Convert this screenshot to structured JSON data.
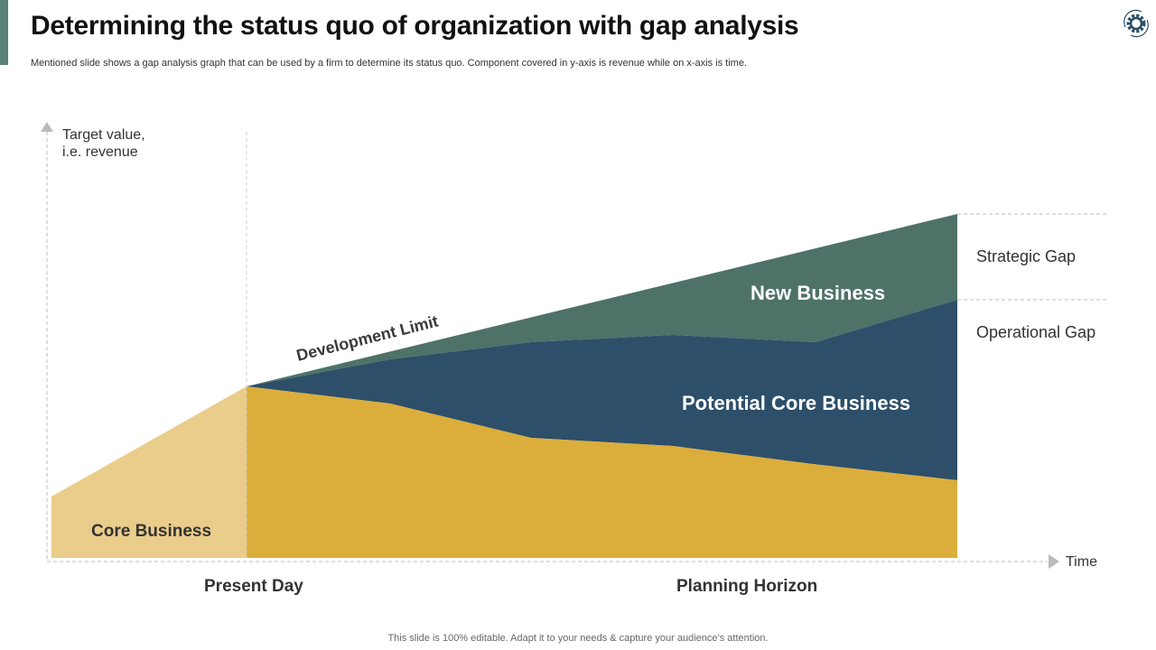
{
  "header": {
    "title": "Determining the status quo of organization with gap analysis",
    "subtitle": "Mentioned slide shows a gap analysis graph that can be used by a firm to determine its status quo. Component covered in y-axis is revenue while on x-axis is time.",
    "icon": "gear-cycle-icon"
  },
  "diagram": {
    "y_axis_label_line1": "Target value,",
    "y_axis_label_line2": "i.e. revenue",
    "x_axis_label": "Time",
    "present_day": "Present Day",
    "planning_horizon": "Planning Horizon",
    "core_business": "Core Business",
    "potential_core_business": "Potential Core Business",
    "new_business": "New Business",
    "development_limit": "Development Limit",
    "strategic_gap": "Strategic Gap",
    "operational_gap": "Operational Gap",
    "colors": {
      "core_light": "#EACD8A",
      "core": "#DBAD3B",
      "potential_core": "#2D4F69",
      "new_business": "#4E7268",
      "accent": "#5A7E78"
    }
  },
  "footer": {
    "text": "This slide is 100% editable. Adapt it to your needs & capture your audience’s attention."
  }
}
